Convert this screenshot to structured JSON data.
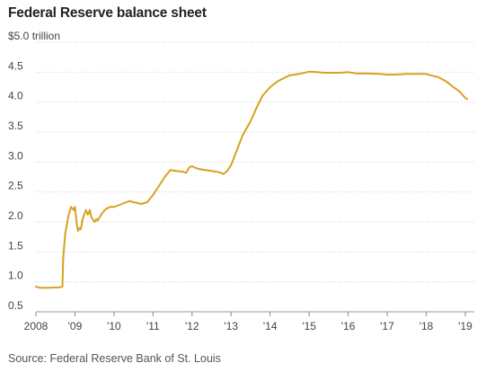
{
  "title": "Federal Reserve balance sheet",
  "source": "Source: Federal Reserve Bank of St. Louis",
  "chart_data": {
    "type": "line",
    "title": "Federal Reserve balance sheet",
    "ylabel": "",
    "xlabel": "",
    "ylim": [
      0.5,
      5.0
    ],
    "xlim": [
      2008.0,
      2019.0
    ],
    "grid": true,
    "y_ticks": [
      0.5,
      1.0,
      1.5,
      2.0,
      2.5,
      3.0,
      3.5,
      4.0,
      4.5,
      5.0
    ],
    "y_tick_labels": [
      "0.5",
      "1.0",
      "1.5",
      "2.0",
      "2.5",
      "3.0",
      "3.5",
      "4.0",
      "4.5",
      "$5.0 trillion"
    ],
    "x_ticks": [
      2008,
      2009,
      2010,
      2011,
      2012,
      2013,
      2014,
      2015,
      2016,
      2017,
      2018,
      2019
    ],
    "x_tick_labels": [
      "2008",
      "'09",
      "'10",
      "'11",
      "'12",
      "'13",
      "'14",
      "'15",
      "'16",
      "'17",
      "'18",
      "'19"
    ],
    "colors": {
      "series": "#D9A11F"
    },
    "series": [
      {
        "x": [
          2008.0,
          2008.1,
          2008.3,
          2008.6,
          2008.68,
          2008.7,
          2008.75,
          2008.83,
          2008.9,
          2008.97,
          2009.0,
          2009.05,
          2009.08,
          2009.12,
          2009.15,
          2009.2,
          2009.28,
          2009.33,
          2009.38,
          2009.42,
          2009.5,
          2009.55,
          2009.58,
          2009.65,
          2009.7,
          2009.8,
          2009.9,
          2010.0,
          2010.2,
          2010.4,
          2010.5,
          2010.7,
          2010.85,
          2011.0,
          2011.15,
          2011.3,
          2011.45,
          2011.5,
          2011.6,
          2011.75,
          2011.85,
          2011.92,
          2011.95,
          2012.0,
          2012.1,
          2012.2,
          2012.3,
          2012.5,
          2012.7,
          2012.8,
          2012.9,
          2013.0,
          2013.15,
          2013.3,
          2013.5,
          2013.65,
          2013.8,
          2014.0,
          2014.2,
          2014.35,
          2014.5,
          2014.65,
          2014.8,
          2014.95,
          2015.0,
          2015.2,
          2015.4,
          2015.6,
          2015.8,
          2016.0,
          2016.2,
          2016.5,
          2016.8,
          2017.0,
          2017.2,
          2017.5,
          2017.7,
          2017.85,
          2018.0,
          2018.1,
          2018.3,
          2018.5,
          2018.7,
          2018.85,
          2019.0,
          2019.05
        ],
        "y": [
          0.92,
          0.9,
          0.9,
          0.91,
          0.92,
          1.4,
          1.8,
          2.1,
          2.25,
          2.2,
          2.25,
          1.95,
          1.85,
          1.9,
          1.88,
          2.05,
          2.2,
          2.12,
          2.2,
          2.08,
          2.0,
          2.05,
          2.02,
          2.1,
          2.15,
          2.22,
          2.25,
          2.25,
          2.3,
          2.35,
          2.33,
          2.3,
          2.33,
          2.45,
          2.6,
          2.75,
          2.87,
          2.86,
          2.85,
          2.84,
          2.82,
          2.9,
          2.92,
          2.93,
          2.9,
          2.88,
          2.87,
          2.85,
          2.83,
          2.8,
          2.85,
          2.95,
          3.2,
          3.45,
          3.68,
          3.9,
          4.1,
          4.25,
          4.35,
          4.4,
          4.45,
          4.46,
          4.48,
          4.5,
          4.51,
          4.5,
          4.49,
          4.49,
          4.49,
          4.5,
          4.48,
          4.48,
          4.47,
          4.46,
          4.46,
          4.47,
          4.47,
          4.47,
          4.47,
          4.45,
          4.42,
          4.35,
          4.25,
          4.18,
          4.07,
          4.05
        ]
      }
    ]
  }
}
